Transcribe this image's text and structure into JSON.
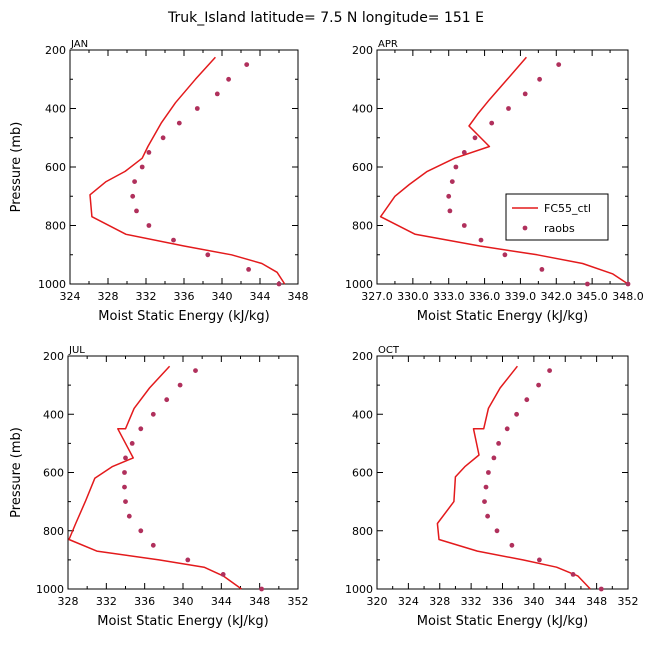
{
  "title": "Truk_Island   latitude= 7.5 N longitude= 151 E",
  "chart_data": [
    {
      "type": "line",
      "panel": "JAN",
      "xlabel": "Moist Static Energy (kJ/kg)",
      "ylabel": "Pressure (mb)",
      "xlim": [
        324,
        348
      ],
      "ylim": [
        1000,
        200
      ],
      "x_ticks": [
        "324",
        "328",
        "332",
        "336",
        "340",
        "344",
        "348"
      ],
      "y_ticks": [
        "200",
        "400",
        "600",
        "800",
        "1000"
      ],
      "series": [
        {
          "name": "FC55_ctl",
          "kind": "line",
          "color": "#e31a1c",
          "x": [
            339.3,
            337.2,
            335.1,
            333.6,
            332.2,
            331.6,
            329.8,
            327.8,
            326.1,
            326.3,
            329.9,
            336.0,
            341.0,
            344.2,
            345.8,
            346.6
          ],
          "y": [
            225,
            300,
            380,
            450,
            530,
            570,
            615,
            650,
            695,
            770,
            830,
            870,
            900,
            930,
            960,
            1000
          ]
        },
        {
          "name": "raobs",
          "kind": "points",
          "color": "#b0305c",
          "x": [
            342.6,
            340.7,
            339.5,
            337.4,
            335.5,
            333.8,
            332.3,
            331.6,
            330.8,
            330.6,
            331.0,
            332.3,
            334.9,
            338.5,
            342.8,
            346.0
          ],
          "y": [
            250,
            300,
            350,
            400,
            450,
            500,
            550,
            600,
            650,
            700,
            750,
            800,
            850,
            900,
            950,
            1000
          ]
        }
      ]
    },
    {
      "type": "line",
      "panel": "APR",
      "xlabel": "Moist Static Energy (kJ/kg)",
      "ylabel": "Pressure (mb)",
      "xlim": [
        327.0,
        348.0
      ],
      "ylim": [
        1000,
        200
      ],
      "x_ticks": [
        "327.0",
        "330.0",
        "333.0",
        "336.0",
        "339.0",
        "342.0",
        "345.0",
        "348.0"
      ],
      "y_ticks": [
        "200",
        "400",
        "600",
        "800",
        "1000"
      ],
      "series": [
        {
          "name": "FC55_ctl",
          "kind": "line",
          "color": "#e31a1c",
          "x": [
            339.5,
            337.9,
            336.4,
            335.4,
            334.7,
            336.4,
            333.5,
            331.2,
            329.7,
            328.5,
            327.3,
            330.2,
            335.6,
            340.4,
            344.2,
            346.7,
            348.0
          ],
          "y": [
            225,
            300,
            370,
            420,
            460,
            530,
            570,
            615,
            660,
            700,
            770,
            830,
            870,
            900,
            930,
            965,
            1000
          ]
        },
        {
          "name": "raobs",
          "kind": "points",
          "color": "#b0305c",
          "x": [
            342.2,
            340.6,
            339.4,
            338.0,
            336.6,
            335.2,
            334.3,
            333.6,
            333.3,
            333.0,
            333.1,
            334.3,
            335.7,
            337.7,
            340.8,
            344.6,
            348.0
          ],
          "y": [
            250,
            300,
            350,
            400,
            450,
            500,
            550,
            600,
            650,
            700,
            750,
            800,
            850,
            900,
            950,
            1000,
            1000
          ]
        }
      ]
    },
    {
      "type": "line",
      "panel": "JUL",
      "xlabel": "Moist Static Energy (kJ/kg)",
      "ylabel": "Pressure (mb)",
      "xlim": [
        328,
        352
      ],
      "ylim": [
        1000,
        200
      ],
      "x_ticks": [
        "328",
        "332",
        "336",
        "340",
        "344",
        "348",
        "352"
      ],
      "y_ticks": [
        "200",
        "400",
        "600",
        "800",
        "1000"
      ],
      "series": [
        {
          "name": "FC55_ctl",
          "kind": "line",
          "color": "#e31a1c",
          "x": [
            338.6,
            336.5,
            334.9,
            334.0,
            333.2,
            334.8,
            332.6,
            330.8,
            329.8,
            328.8,
            328.1,
            331.0,
            337.5,
            342.2,
            344.2,
            346.1
          ],
          "y": [
            235,
            310,
            380,
            450,
            450,
            550,
            580,
            620,
            700,
            775,
            830,
            870,
            900,
            925,
            955,
            1000
          ]
        },
        {
          "name": "raobs",
          "kind": "points",
          "color": "#b0305c",
          "x": [
            341.3,
            339.7,
            338.3,
            336.9,
            335.6,
            334.7,
            334.0,
            333.9,
            333.9,
            334.0,
            334.4,
            335.6,
            336.9,
            340.5,
            344.2,
            348.2
          ],
          "y": [
            250,
            300,
            350,
            400,
            450,
            500,
            550,
            600,
            650,
            700,
            750,
            800,
            850,
            900,
            950,
            1000
          ]
        }
      ]
    },
    {
      "type": "line",
      "panel": "OCT",
      "xlabel": "Moist Static Energy (kJ/kg)",
      "ylabel": "Pressure (mb)",
      "xlim": [
        320,
        352
      ],
      "ylim": [
        1000,
        200
      ],
      "x_ticks": [
        "320",
        "324",
        "328",
        "332",
        "336",
        "340",
        "344",
        "348",
        "352"
      ],
      "y_ticks": [
        "200",
        "400",
        "600",
        "800",
        "1000"
      ],
      "series": [
        {
          "name": "FC55_ctl",
          "kind": "line",
          "color": "#e31a1c",
          "x": [
            337.9,
            335.7,
            334.2,
            333.6,
            332.3,
            333.0,
            331.2,
            330.0,
            329.8,
            327.7,
            327.9,
            332.8,
            338.6,
            342.9,
            345.6,
            347.2
          ],
          "y": [
            235,
            310,
            380,
            450,
            450,
            540,
            580,
            615,
            700,
            775,
            830,
            870,
            900,
            925,
            955,
            1000
          ]
        },
        {
          "name": "raobs",
          "kind": "points",
          "color": "#b0305c",
          "x": [
            342.0,
            340.6,
            339.1,
            337.8,
            336.6,
            335.5,
            334.9,
            334.2,
            333.9,
            333.7,
            334.1,
            335.3,
            337.2,
            340.7,
            345.0,
            348.6
          ],
          "y": [
            250,
            300,
            350,
            400,
            450,
            500,
            550,
            600,
            650,
            700,
            750,
            800,
            850,
            900,
            950,
            1000
          ]
        }
      ]
    }
  ],
  "legend": {
    "panel": "APR",
    "items": [
      {
        "label": "FC55_ctl",
        "kind": "line",
        "color": "#e31a1c"
      },
      {
        "label": "raobs",
        "kind": "points",
        "color": "#b0305c"
      }
    ]
  }
}
